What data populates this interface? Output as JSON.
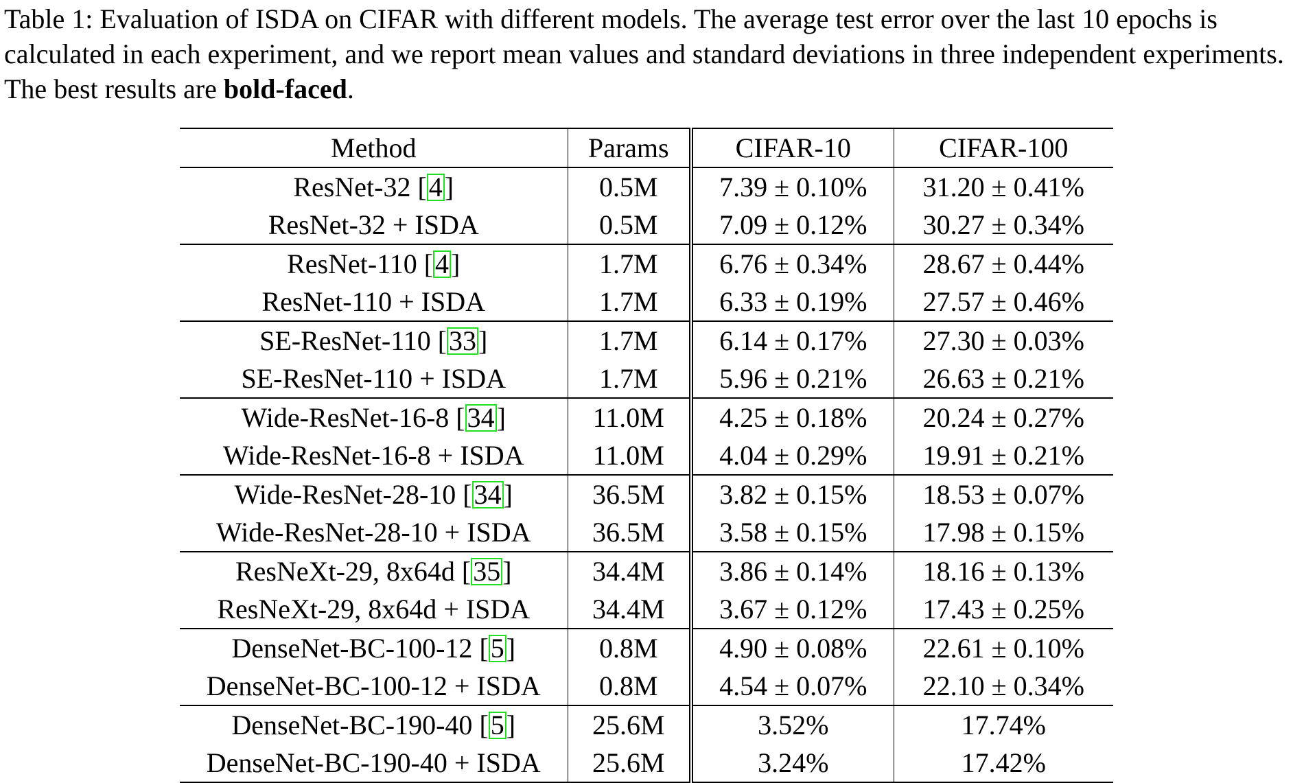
{
  "caption": {
    "prefix": "Table 1: Evaluation of ISDA on CIFAR with different models. The average test error over the last 10 epochs is calculated in each experiment, and we report mean values and standard deviations in three independent experiments. The best results are ",
    "bold": "bold-faced",
    "suffix": "."
  },
  "headers": {
    "method": "Method",
    "params": "Params",
    "cifar10": "CIFAR-10",
    "cifar100": "CIFAR-100"
  },
  "groups": [
    {
      "base": {
        "name": "ResNet-32",
        "cite": "4",
        "params": "0.5M",
        "c10": "7.39 ± 0.10%",
        "c100": "31.20 ± 0.41%"
      },
      "isda": {
        "name": "ResNet-32 + ISDA",
        "params": "0.5M",
        "c10": "7.09 ± 0.12%",
        "c100": "30.27 ± 0.34%"
      }
    },
    {
      "base": {
        "name": "ResNet-110",
        "cite": "4",
        "params": "1.7M",
        "c10": "6.76 ± 0.34%",
        "c100": "28.67 ± 0.44%"
      },
      "isda": {
        "name": "ResNet-110 + ISDA",
        "params": "1.7M",
        "c10": "6.33 ± 0.19%",
        "c100": "27.57 ± 0.46%"
      }
    },
    {
      "base": {
        "name": "SE-ResNet-110",
        "cite": "33",
        "params": "1.7M",
        "c10": "6.14 ± 0.17%",
        "c100": "27.30 ± 0.03%"
      },
      "isda": {
        "name": "SE-ResNet-110 + ISDA",
        "params": "1.7M",
        "c10": "5.96 ± 0.21%",
        "c100": "26.63 ± 0.21%"
      }
    },
    {
      "base": {
        "name": "Wide-ResNet-16-8",
        "cite": "34",
        "params": "11.0M",
        "c10": "4.25 ± 0.18%",
        "c100": "20.24 ± 0.27%"
      },
      "isda": {
        "name": "Wide-ResNet-16-8 + ISDA",
        "params": "11.0M",
        "c10": "4.04 ± 0.29%",
        "c100": "19.91 ± 0.21%"
      }
    },
    {
      "base": {
        "name": "Wide-ResNet-28-10",
        "cite": "34",
        "params": "36.5M",
        "c10": "3.82 ± 0.15%",
        "c100": "18.53 ± 0.07%"
      },
      "isda": {
        "name": "Wide-ResNet-28-10 + ISDA",
        "params": "36.5M",
        "c10": "3.58 ± 0.15%",
        "c100": "17.98 ± 0.15%"
      }
    },
    {
      "base": {
        "name": "ResNeXt-29, 8x64d",
        "cite": "35",
        "params": "34.4M",
        "c10": "3.86 ± 0.14%",
        "c100": "18.16 ± 0.13%"
      },
      "isda": {
        "name": "ResNeXt-29, 8x64d + ISDA",
        "params": "34.4M",
        "c10": "3.67 ± 0.12%",
        "c100": "17.43 ± 0.25%"
      }
    },
    {
      "base": {
        "name": "DenseNet-BC-100-12",
        "cite": "5",
        "params": "0.8M",
        "c10": "4.90 ± 0.08%",
        "c100": "22.61 ± 0.10%"
      },
      "isda": {
        "name": "DenseNet-BC-100-12 + ISDA",
        "params": "0.8M",
        "c10": "4.54 ± 0.07%",
        "c100": "22.10 ± 0.34%"
      }
    },
    {
      "base": {
        "name": "DenseNet-BC-190-40",
        "cite": "5",
        "params": "25.6M",
        "c10": "3.52%",
        "c100": "17.74%"
      },
      "isda": {
        "name": "DenseNet-BC-190-40 + ISDA",
        "params": "25.6M",
        "c10": "3.24%",
        "c100": "17.42%"
      }
    }
  ]
}
